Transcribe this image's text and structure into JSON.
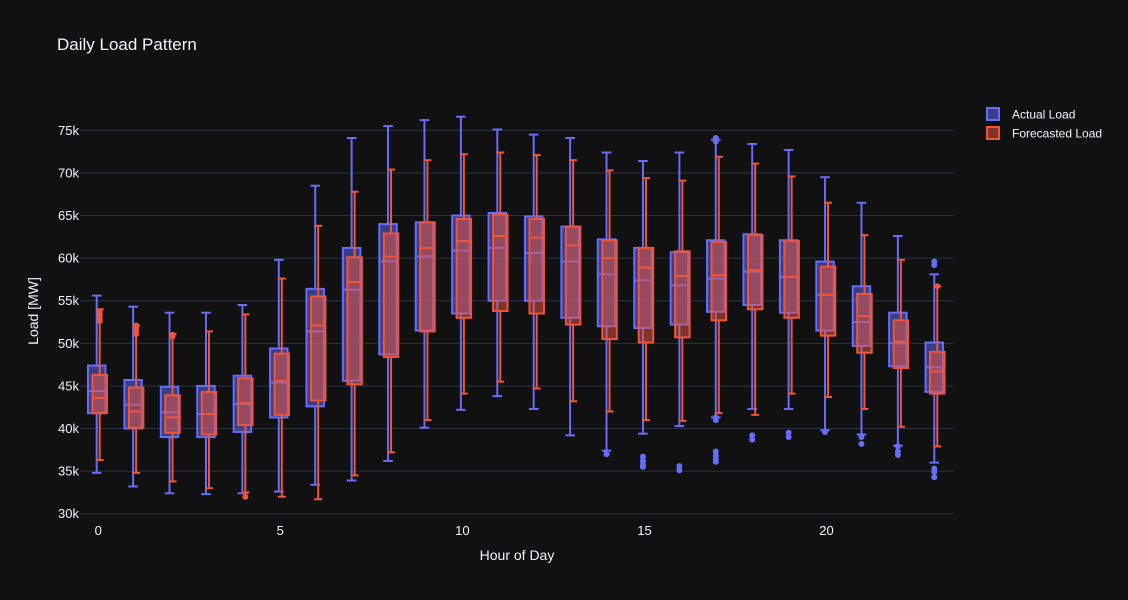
{
  "chart_data": {
    "type": "box",
    "title": "Daily Load Pattern",
    "xlabel": "Hour of Day",
    "ylabel": "Load [MW]",
    "xlim": [
      -0.5,
      23.5
    ],
    "ylim": [
      29500,
      79500
    ],
    "xticks": [
      0,
      5,
      10,
      15,
      20
    ],
    "yticks": [
      30000,
      35000,
      40000,
      45000,
      50000,
      55000,
      60000,
      65000,
      70000,
      75000
    ],
    "ytick_labels": [
      "30k",
      "35k",
      "40k",
      "45k",
      "50k",
      "55k",
      "60k",
      "65k",
      "70k",
      "75k"
    ],
    "grid": true,
    "legend_position": "top-right",
    "background": "#111111",
    "series": [
      {
        "name": "Actual Load",
        "color": "#636efa",
        "x": [
          0,
          1,
          2,
          3,
          4,
          5,
          6,
          7,
          8,
          9,
          10,
          11,
          12,
          13,
          14,
          15,
          16,
          17,
          18,
          19,
          20,
          21,
          22,
          23
        ],
        "min": [
          34800,
          33200,
          32400,
          32300,
          32400,
          32600,
          33400,
          33900,
          36200,
          40100,
          42200,
          43800,
          42300,
          39200,
          37400,
          39400,
          40300,
          41300,
          42300,
          42300,
          39800,
          39300,
          38000,
          36000
        ],
        "q1": [
          41800,
          40000,
          39000,
          39000,
          39600,
          41300,
          42600,
          45600,
          48700,
          51500,
          53500,
          55000,
          55000,
          53000,
          52000,
          51800,
          52200,
          53700,
          54500,
          53600,
          51500,
          49700,
          47300,
          44300
        ],
        "median": [
          44400,
          42800,
          41900,
          41700,
          42900,
          45400,
          51400,
          56300,
          59600,
          60200,
          60900,
          61200,
          60600,
          59600,
          58100,
          57400,
          56800,
          57600,
          58400,
          57800,
          55700,
          52500,
          50000,
          47200
        ],
        "q3": [
          47400,
          45700,
          44900,
          45000,
          46200,
          49400,
          56400,
          61200,
          64000,
          64200,
          65000,
          65300,
          64900,
          63700,
          62200,
          61200,
          60700,
          62100,
          62800,
          62100,
          59600,
          56700,
          53600,
          50100
        ],
        "max": [
          55600,
          54300,
          53600,
          53600,
          54500,
          59800,
          68500,
          74100,
          75500,
          76200,
          76600,
          75100,
          74500,
          74100,
          72400,
          71400,
          72400,
          73900,
          73400,
          72700,
          69500,
          66500,
          62600,
          58100
        ],
        "outliers": [
          [],
          [],
          [],
          [],
          [],
          [],
          [],
          [],
          [],
          [],
          [],
          [],
          [],
          [],
          [
            37000
          ],
          [
            36700,
            36200,
            35800,
            35500
          ],
          [
            35600,
            35100
          ],
          [
            74100,
            73700,
            41300,
            41000,
            37300,
            36800,
            36400,
            36100
          ],
          [
            39200,
            38700
          ],
          [
            39500,
            39000
          ],
          [
            39600
          ],
          [
            39000,
            38200
          ],
          [
            37900,
            37300,
            36900
          ],
          [
            59600,
            59200,
            35300,
            34900,
            34300
          ]
        ]
      },
      {
        "name": "Forecasted Load",
        "color": "#ef553b",
        "x": [
          0,
          1,
          2,
          3,
          4,
          5,
          6,
          7,
          8,
          9,
          10,
          11,
          12,
          13,
          14,
          15,
          16,
          17,
          18,
          19,
          20,
          21,
          22,
          23
        ],
        "min": [
          36300,
          34800,
          33800,
          33000,
          32500,
          32000,
          31700,
          34500,
          37200,
          41000,
          44100,
          45500,
          44700,
          43200,
          42000,
          41000,
          40900,
          41800,
          41600,
          44100,
          43700,
          42300,
          40200,
          37900
        ],
        "q1": [
          41800,
          40100,
          39500,
          39300,
          40400,
          41600,
          43300,
          45200,
          48400,
          51400,
          53000,
          53800,
          53500,
          52200,
          50500,
          50100,
          50700,
          52700,
          54000,
          53000,
          50900,
          48900,
          47100,
          44100
        ],
        "median": [
          43600,
          42000,
          41300,
          41700,
          43000,
          45600,
          52100,
          57200,
          60200,
          61200,
          62000,
          62600,
          62400,
          61500,
          60000,
          58900,
          57900,
          58000,
          58600,
          57800,
          55700,
          53200,
          50200,
          46700
        ],
        "q3": [
          46300,
          44800,
          43900,
          44300,
          45900,
          48800,
          55500,
          60100,
          62900,
          64200,
          64600,
          65100,
          64600,
          63700,
          62100,
          61200,
          60800,
          61900,
          62700,
          62000,
          59000,
          55800,
          52700,
          49000
        ],
        "max": [
          54000,
          52100,
          51100,
          51400,
          53400,
          57600,
          63800,
          67800,
          70400,
          71500,
          72200,
          72400,
          72100,
          71500,
          70300,
          69400,
          69100,
          71900,
          71100,
          69600,
          66500,
          62700,
          59800,
          56700
        ],
        "outliers": [
          [
            53700,
            53300,
            52900,
            52600
          ],
          [
            52100,
            51800,
            51500,
            51100
          ],
          [
            51000,
            50800
          ],
          [],
          [
            32000
          ],
          [],
          [],
          [],
          [],
          [],
          [],
          [],
          [],
          [],
          [],
          [],
          [],
          [],
          [],
          [],
          [],
          [],
          [],
          [
            56700
          ]
        ]
      }
    ]
  }
}
